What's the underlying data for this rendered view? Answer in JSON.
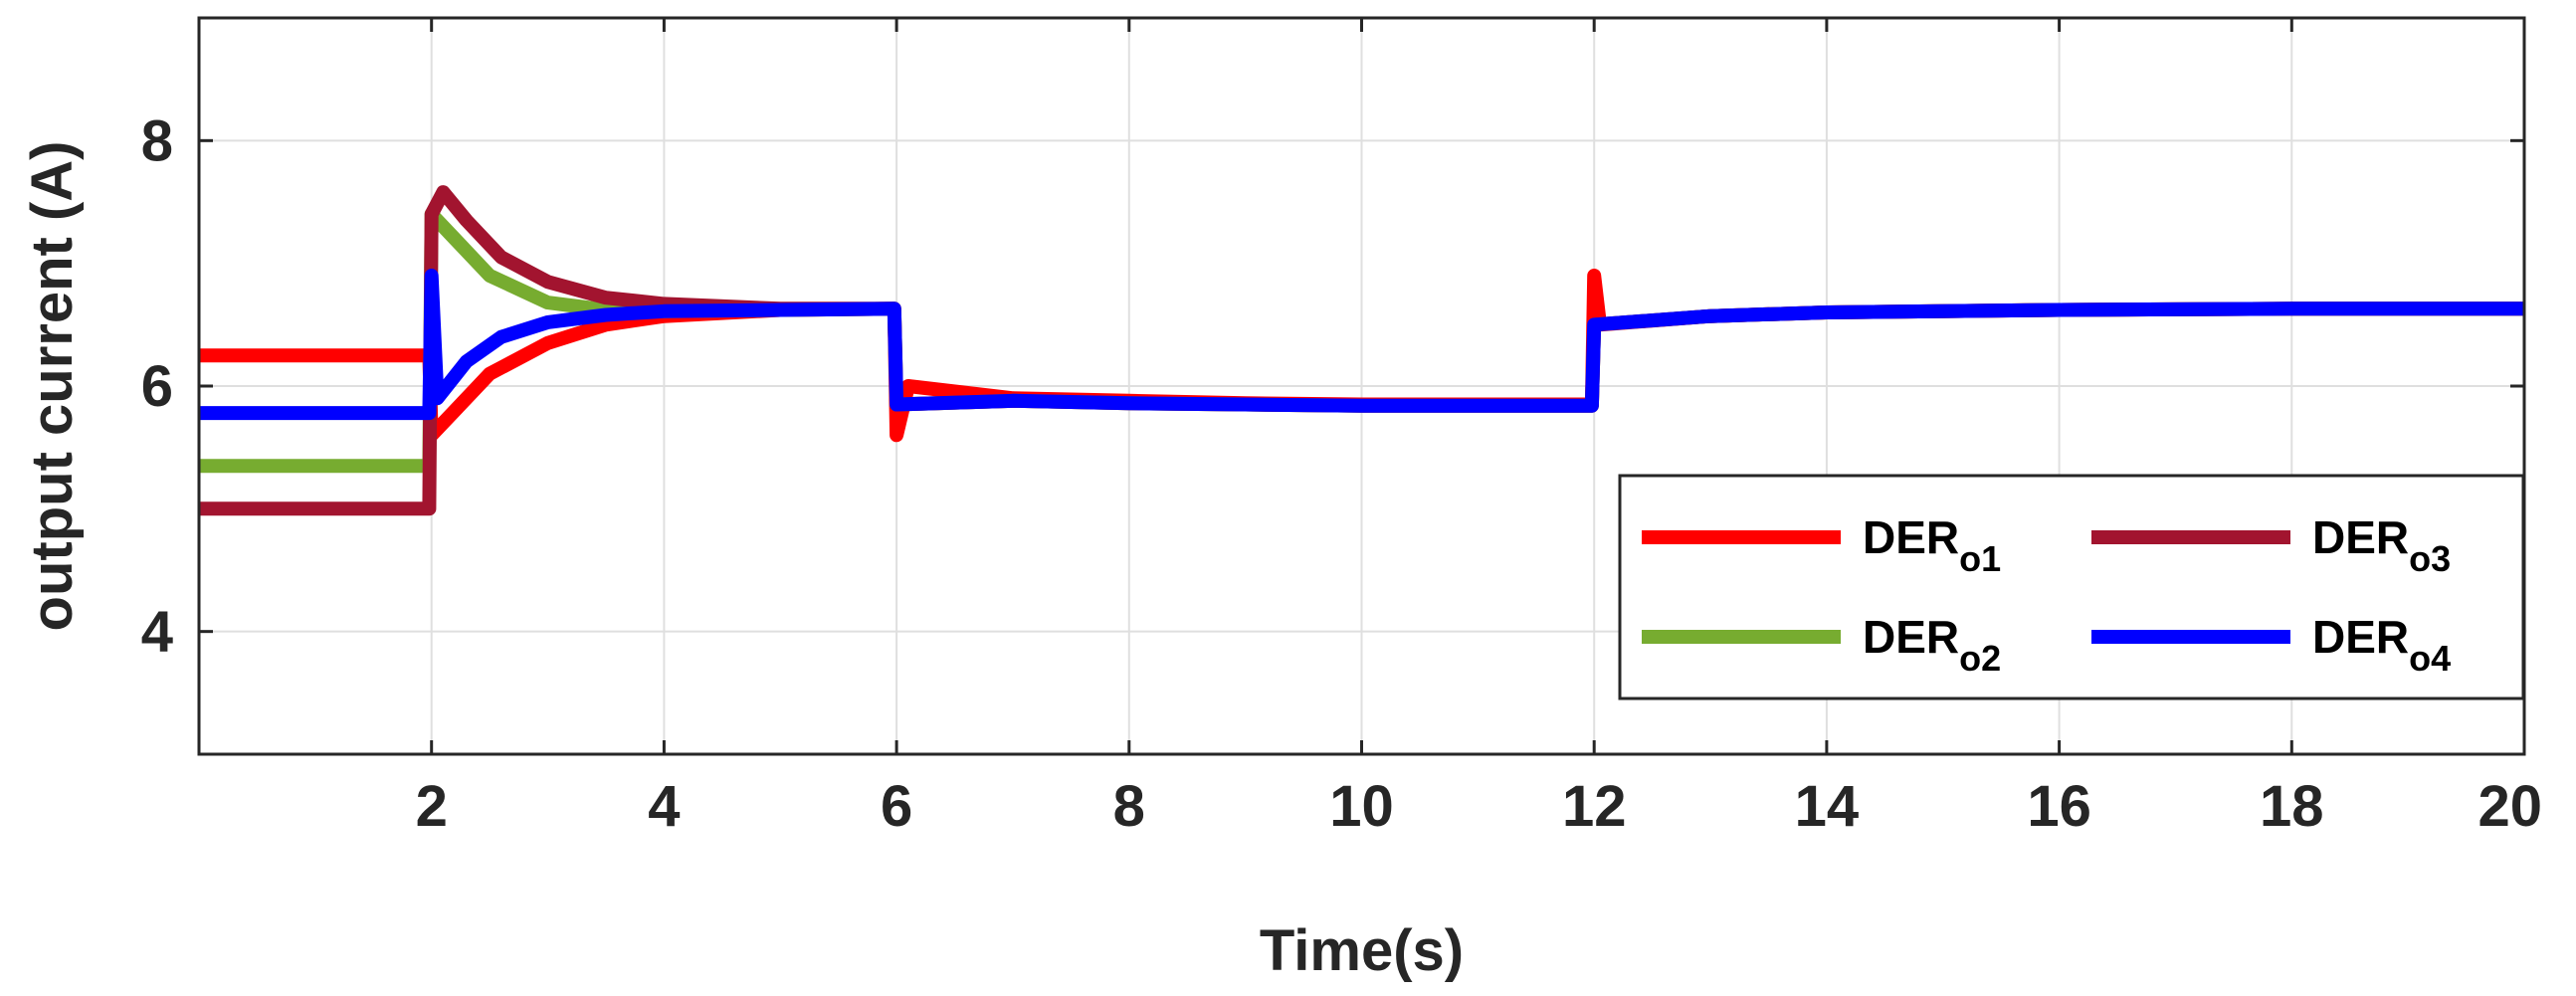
{
  "chart_data": {
    "type": "line",
    "title": "",
    "xlabel": "Time(s)",
    "ylabel": "output current (A)",
    "xlim": [
      0,
      20
    ],
    "ylim": [
      3,
      9
    ],
    "xticks": [
      2,
      4,
      6,
      8,
      10,
      12,
      14,
      16,
      18,
      20
    ],
    "yticks": [
      4,
      6,
      8
    ],
    "xtick_labels": [
      "2",
      "4",
      "6",
      "8",
      "10",
      "12",
      "14",
      "16",
      "18",
      "20"
    ],
    "ytick_labels": [
      "4",
      "6",
      "8"
    ],
    "grid": true,
    "legend_position": "bottom-right",
    "series": [
      {
        "name": "DER",
        "subscript": "o1",
        "color": "#ff0000",
        "points": [
          [
            0,
            6.25
          ],
          [
            1.98,
            6.25
          ],
          [
            2.0,
            5.6
          ],
          [
            2.2,
            5.8
          ],
          [
            2.5,
            6.1
          ],
          [
            3.0,
            6.35
          ],
          [
            3.5,
            6.5
          ],
          [
            4.0,
            6.57
          ],
          [
            5.0,
            6.62
          ],
          [
            5.98,
            6.63
          ],
          [
            6.0,
            5.6
          ],
          [
            6.1,
            6.0
          ],
          [
            7,
            5.9
          ],
          [
            8,
            5.88
          ],
          [
            9,
            5.86
          ],
          [
            10,
            5.85
          ],
          [
            11,
            5.85
          ],
          [
            11.98,
            5.85
          ],
          [
            12.0,
            6.9
          ],
          [
            12.05,
            6.5
          ],
          [
            13,
            6.57
          ],
          [
            14,
            6.6
          ],
          [
            16,
            6.62
          ],
          [
            18,
            6.63
          ],
          [
            20,
            6.63
          ]
        ]
      },
      {
        "name": "DER",
        "subscript": "o2",
        "color": "#77ac30",
        "points": [
          [
            0,
            5.35
          ],
          [
            1.98,
            5.35
          ],
          [
            2.0,
            7.4
          ],
          [
            2.2,
            7.2
          ],
          [
            2.5,
            6.9
          ],
          [
            3.0,
            6.68
          ],
          [
            3.5,
            6.62
          ],
          [
            4.0,
            6.61
          ],
          [
            5.0,
            6.62
          ],
          [
            5.98,
            6.63
          ],
          [
            6.0,
            5.85
          ],
          [
            7,
            5.88
          ],
          [
            8,
            5.86
          ],
          [
            9,
            5.85
          ],
          [
            10,
            5.84
          ],
          [
            11,
            5.84
          ],
          [
            11.98,
            5.84
          ],
          [
            12.0,
            6.5
          ],
          [
            13,
            6.57
          ],
          [
            14,
            6.6
          ],
          [
            16,
            6.62
          ],
          [
            18,
            6.63
          ],
          [
            20,
            6.63
          ]
        ]
      },
      {
        "name": "DER",
        "subscript": "o3",
        "color": "#a2142f",
        "points": [
          [
            0,
            5.0
          ],
          [
            1.98,
            5.0
          ],
          [
            2.0,
            7.4
          ],
          [
            2.1,
            7.58
          ],
          [
            2.3,
            7.35
          ],
          [
            2.6,
            7.05
          ],
          [
            3.0,
            6.85
          ],
          [
            3.5,
            6.72
          ],
          [
            4.0,
            6.67
          ],
          [
            5.0,
            6.63
          ],
          [
            5.98,
            6.63
          ],
          [
            6.0,
            5.85
          ],
          [
            7,
            5.88
          ],
          [
            8,
            5.86
          ],
          [
            9,
            5.85
          ],
          [
            10,
            5.84
          ],
          [
            11,
            5.84
          ],
          [
            11.98,
            5.84
          ],
          [
            12.0,
            6.5
          ],
          [
            13,
            6.57
          ],
          [
            14,
            6.6
          ],
          [
            16,
            6.62
          ],
          [
            18,
            6.63
          ],
          [
            20,
            6.63
          ]
        ]
      },
      {
        "name": "DER",
        "subscript": "o4",
        "color": "#0000ff",
        "points": [
          [
            0,
            5.78
          ],
          [
            1.98,
            5.78
          ],
          [
            2.0,
            6.9
          ],
          [
            2.05,
            5.9
          ],
          [
            2.3,
            6.2
          ],
          [
            2.6,
            6.4
          ],
          [
            3.0,
            6.52
          ],
          [
            3.5,
            6.58
          ],
          [
            4.0,
            6.61
          ],
          [
            5.0,
            6.62
          ],
          [
            5.98,
            6.63
          ],
          [
            6.0,
            5.85
          ],
          [
            7,
            5.88
          ],
          [
            8,
            5.86
          ],
          [
            9,
            5.85
          ],
          [
            10,
            5.84
          ],
          [
            11,
            5.84
          ],
          [
            11.98,
            5.84
          ],
          [
            12.0,
            6.5
          ],
          [
            13,
            6.57
          ],
          [
            14,
            6.6
          ],
          [
            16,
            6.62
          ],
          [
            18,
            6.63
          ],
          [
            20,
            6.63
          ]
        ]
      }
    ]
  }
}
